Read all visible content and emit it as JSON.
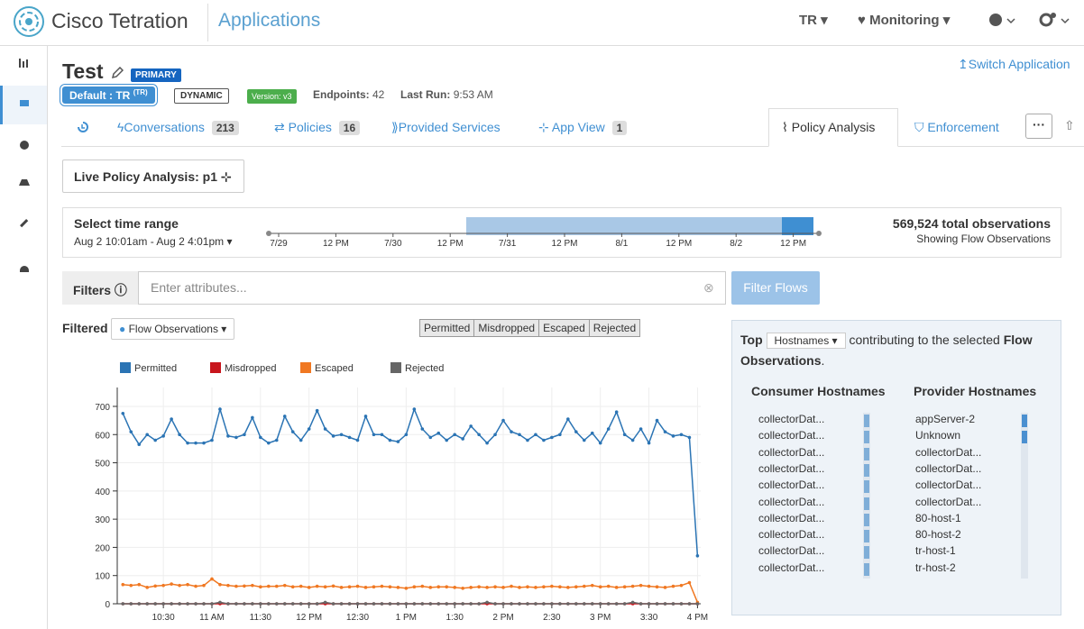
{
  "nav": {
    "brand": "Cisco Tetration",
    "section": "Applications",
    "user": "TR",
    "monitoring": "Monitoring"
  },
  "app": {
    "name": "Test",
    "primary_badge": "PRIMARY",
    "scope": "Default : TR",
    "scope_sup": "(TR)",
    "mode": "DYNAMIC",
    "version": "Version: v3",
    "endpoints_label": "Endpoints:",
    "endpoints": 42,
    "last_run_label": "Last Run:",
    "last_run": "9:53 AM",
    "switch": "Switch Application"
  },
  "tabs": {
    "conversations": {
      "label": "Conversations",
      "count": 213
    },
    "policies": {
      "label": "Policies",
      "count": 16
    },
    "provided_services": {
      "label": "Provided Services"
    },
    "app_view": {
      "label": "App View",
      "count": 1
    },
    "policy_analysis": {
      "label": "Policy Analysis"
    },
    "enforcement": {
      "label": "Enforcement"
    }
  },
  "analysis": {
    "title": "Live Policy Analysis: p1"
  },
  "time_range": {
    "label": "Select time range",
    "range": "Aug 2 10:01am - Aug 2 4:01pm",
    "ticks": [
      "7/29",
      "12 PM",
      "7/30",
      "12 PM",
      "7/31",
      "12 PM",
      "8/1",
      "12 PM",
      "8/2",
      "12 PM"
    ],
    "total": "569,524 total observations",
    "subtitle": "Showing Flow Observations"
  },
  "filters": {
    "label": "Filters",
    "placeholder": "Enter attributes...",
    "button": "Filter Flows"
  },
  "chart_controls": {
    "filtered": "Filtered",
    "dropdown": "Flow Observations",
    "toggles": [
      "Permitted",
      "Misdropped",
      "Escaped",
      "Rejected"
    ]
  },
  "chart_data": {
    "type": "line",
    "grid": true,
    "x": [
      605,
      610,
      615,
      620,
      625,
      630,
      635,
      640,
      645,
      650,
      655,
      660,
      665,
      670,
      675,
      680,
      685,
      690,
      695,
      700,
      705,
      710,
      715,
      720,
      725,
      730,
      735,
      740,
      745,
      750,
      755,
      760,
      765,
      770,
      775,
      780,
      785,
      790,
      795,
      800,
      805,
      810,
      815,
      820,
      825,
      830,
      835,
      840,
      845,
      850,
      855,
      860,
      865,
      870,
      875,
      880,
      885,
      890,
      895,
      900,
      905,
      910,
      915,
      920,
      925,
      930,
      935,
      940,
      945,
      950,
      955,
      960
    ],
    "xlim": [
      601.5,
      962
    ],
    "xticks": [
      {
        "value": 630,
        "label": "10:30"
      },
      {
        "value": 660,
        "label": "11 AM"
      },
      {
        "value": 690,
        "label": "11:30"
      },
      {
        "value": 720,
        "label": "12 PM"
      },
      {
        "value": 750,
        "label": "12:30"
      },
      {
        "value": 780,
        "label": "1 PM"
      },
      {
        "value": 810,
        "label": "1:30"
      },
      {
        "value": 840,
        "label": "2 PM"
      },
      {
        "value": 870,
        "label": "2:30"
      },
      {
        "value": 900,
        "label": "3 PM"
      },
      {
        "value": 930,
        "label": "3:30"
      },
      {
        "value": 960,
        "label": "4 PM"
      }
    ],
    "ylim": [
      0,
      767
    ],
    "yticks": [
      0,
      100,
      200,
      300,
      400,
      500,
      600,
      700
    ],
    "series": [
      {
        "name": "Permitted",
        "color": "#2b74b4",
        "values": [
          675,
          610,
          565,
          600,
          580,
          595,
          655,
          600,
          570,
          570,
          570,
          580,
          690,
          595,
          590,
          600,
          660,
          590,
          570,
          580,
          665,
          610,
          580,
          620,
          685,
          620,
          595,
          600,
          590,
          580,
          665,
          600,
          600,
          580,
          575,
          600,
          690,
          620,
          590,
          605,
          580,
          600,
          585,
          630,
          600,
          570,
          600,
          650,
          610,
          600,
          580,
          600,
          580,
          590,
          600,
          655,
          610,
          580,
          605,
          570,
          620,
          680,
          600,
          580,
          620,
          570,
          650,
          610,
          595,
          600,
          590,
          170
        ]
      },
      {
        "name": "Misdropped",
        "color": "#c8161d",
        "values": [
          0,
          0,
          0,
          0,
          0,
          0,
          0,
          0,
          0,
          0,
          0,
          0,
          0,
          0,
          0,
          0,
          0,
          0,
          0,
          0,
          0,
          0,
          0,
          0,
          0,
          0,
          0,
          0,
          0,
          0,
          0,
          0,
          0,
          0,
          0,
          0,
          0,
          0,
          0,
          0,
          0,
          0,
          0,
          0,
          0,
          0,
          0,
          0,
          0,
          0,
          0,
          0,
          0,
          0,
          0,
          0,
          0,
          0,
          0,
          0,
          0,
          0,
          0,
          0,
          0,
          0,
          0,
          0,
          0,
          0,
          0,
          0
        ]
      },
      {
        "name": "Escaped",
        "color": "#f07822",
        "values": [
          68,
          65,
          68,
          58,
          63,
          65,
          70,
          65,
          68,
          62,
          65,
          88,
          68,
          65,
          62,
          63,
          65,
          60,
          62,
          62,
          65,
          60,
          62,
          58,
          62,
          60,
          63,
          58,
          60,
          62,
          58,
          60,
          62,
          60,
          58,
          55,
          60,
          62,
          58,
          60,
          60,
          58,
          55,
          58,
          60,
          58,
          60,
          58,
          62,
          58,
          60,
          58,
          60,
          62,
          60,
          58,
          60,
          62,
          65,
          60,
          62,
          58,
          60,
          62,
          65,
          62,
          60,
          58,
          62,
          65,
          75,
          5
        ]
      },
      {
        "name": "Rejected",
        "color": "#666666",
        "values": [
          0,
          0,
          0,
          0,
          0,
          0,
          0,
          0,
          0,
          0,
          0,
          0,
          5,
          0,
          0,
          0,
          0,
          0,
          0,
          0,
          0,
          0,
          0,
          0,
          0,
          5,
          0,
          0,
          0,
          0,
          0,
          0,
          0,
          0,
          0,
          0,
          0,
          0,
          0,
          0,
          0,
          0,
          0,
          0,
          0,
          5,
          0,
          0,
          0,
          0,
          0,
          0,
          0,
          0,
          0,
          0,
          0,
          0,
          0,
          0,
          0,
          0,
          0,
          5,
          0,
          0,
          0,
          0,
          0,
          0,
          0,
          0
        ]
      }
    ]
  },
  "top_panel": {
    "top": "Top",
    "dropdown": "Hostnames",
    "text": "contributing to the selected",
    "bold": "Flow Observations",
    "period": ".",
    "consumer_header": "Consumer Hostnames",
    "provider_header": "Provider Hostnames",
    "consumers": [
      "collectorDat...",
      "collectorDat...",
      "collectorDat...",
      "collectorDat...",
      "collectorDat...",
      "collectorDat...",
      "collectorDat...",
      "collectorDat...",
      "collectorDat...",
      "collectorDat..."
    ],
    "providers": [
      "appServer-2",
      "Unknown",
      "collectorDat...",
      "collectorDat...",
      "collectorDat...",
      "collectorDat...",
      "80-host-1",
      "80-host-2",
      "tr-host-1",
      "tr-host-2"
    ]
  }
}
